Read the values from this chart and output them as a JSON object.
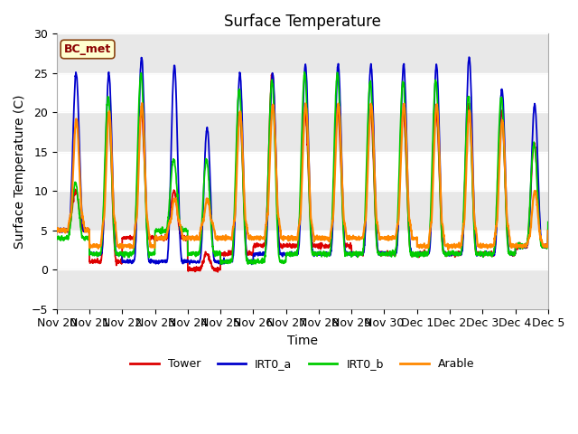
{
  "title": "Surface Temperature",
  "xlabel": "Time",
  "ylabel": "Surface Temperature (C)",
  "ylim": [
    -5,
    30
  ],
  "xlim": [
    0,
    15
  ],
  "annotation": "BC_met",
  "plot_bg": "#ffffff",
  "fig_bg": "#ffffff",
  "series_colors": {
    "Tower": "#dd0000",
    "IRT0_a": "#0000cc",
    "IRT0_b": "#00cc00",
    "Arable": "#ff8800"
  },
  "legend_labels": [
    "Tower",
    "IRT0_a",
    "IRT0_b",
    "Arable"
  ],
  "tick_labels": [
    "Nov 20",
    "Nov 21",
    "Nov 22",
    "Nov 23",
    "Nov 24",
    "Nov 25",
    "Nov 26",
    "Nov 27",
    "Nov 28",
    "Nov 29",
    "Nov 30",
    "Dec 1",
    "Dec 2",
    "Dec 3",
    "Dec 4",
    "Dec 5"
  ],
  "yticks": [
    -5,
    0,
    5,
    10,
    15,
    20,
    25,
    30
  ],
  "n_days": 15,
  "ppd": 144,
  "tower_max": [
    10,
    20,
    20,
    10,
    2,
    20,
    25,
    20,
    20,
    20,
    20,
    20,
    21,
    20,
    16,
    6
  ],
  "irt0a_max": [
    25,
    25,
    27,
    26,
    18,
    25,
    25,
    26,
    26,
    26,
    26,
    26,
    27,
    23,
    21,
    6
  ],
  "irt0b_max": [
    11,
    22,
    25,
    14,
    14,
    23,
    24,
    25,
    25,
    24,
    24,
    24,
    22,
    22,
    16,
    7
  ],
  "arable_max": [
    19,
    20,
    21,
    9,
    9,
    20,
    21,
    21,
    21,
    21,
    21,
    21,
    20,
    19,
    10,
    7
  ],
  "tower_min": [
    5,
    1,
    4,
    4,
    0,
    2,
    3,
    3,
    3,
    2,
    2,
    2,
    2,
    2,
    3,
    5
  ],
  "irt0a_min": [
    5,
    2,
    1,
    1,
    1,
    1,
    2,
    2,
    2,
    2,
    2,
    2,
    2,
    2,
    3,
    5
  ],
  "irt0b_min": [
    4,
    2,
    2,
    5,
    2,
    1,
    1,
    2,
    2,
    2,
    2,
    2,
    2,
    2,
    3,
    6
  ],
  "arable_min": [
    5,
    3,
    3,
    4,
    4,
    4,
    4,
    4,
    4,
    4,
    4,
    3,
    3,
    3,
    3,
    5
  ],
  "arable_shoulder": [
    9,
    9,
    9,
    7,
    7,
    8,
    9,
    8,
    8,
    8,
    8,
    8,
    8,
    8,
    5,
    5
  ]
}
